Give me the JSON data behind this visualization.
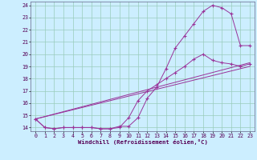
{
  "bg_color": "#cceeff",
  "line_color": "#993399",
  "grid_color": "#99ccbb",
  "xlabel": "Windchill (Refroidissement éolien,°C)",
  "xlim": [
    -0.5,
    23.5
  ],
  "ylim": [
    13.7,
    24.3
  ],
  "xticks": [
    0,
    1,
    2,
    3,
    4,
    5,
    6,
    7,
    8,
    9,
    10,
    11,
    12,
    13,
    14,
    15,
    16,
    17,
    18,
    19,
    20,
    21,
    22,
    23
  ],
  "yticks": [
    14,
    15,
    16,
    17,
    18,
    19,
    20,
    21,
    22,
    23,
    24
  ],
  "curve1_x": [
    0,
    1,
    2,
    3,
    4,
    5,
    6,
    7,
    8,
    9,
    10,
    11,
    12,
    13,
    14,
    15,
    16,
    17,
    18,
    19,
    20,
    21,
    22,
    23
  ],
  "curve1_y": [
    14.7,
    14.0,
    13.9,
    14.0,
    14.0,
    14.0,
    14.0,
    13.9,
    13.9,
    14.1,
    14.1,
    14.8,
    16.4,
    17.3,
    18.8,
    20.5,
    21.5,
    22.5,
    23.5,
    24.0,
    23.8,
    23.3,
    20.7,
    20.7
  ],
  "curve2_x": [
    0,
    1,
    2,
    3,
    4,
    5,
    6,
    7,
    8,
    9,
    10,
    11,
    12,
    13,
    14,
    15,
    16,
    17,
    18,
    19,
    20,
    21,
    22,
    23
  ],
  "curve2_y": [
    14.7,
    14.0,
    13.9,
    14.0,
    14.0,
    14.0,
    14.0,
    13.9,
    13.9,
    14.0,
    14.8,
    16.2,
    17.0,
    17.5,
    18.0,
    18.5,
    19.0,
    19.6,
    20.0,
    19.5,
    19.3,
    19.2,
    19.0,
    19.2
  ],
  "line1_x": [
    0,
    23
  ],
  "line1_y": [
    14.7,
    19.3
  ],
  "line2_x": [
    0,
    23
  ],
  "line2_y": [
    14.7,
    19.0
  ]
}
